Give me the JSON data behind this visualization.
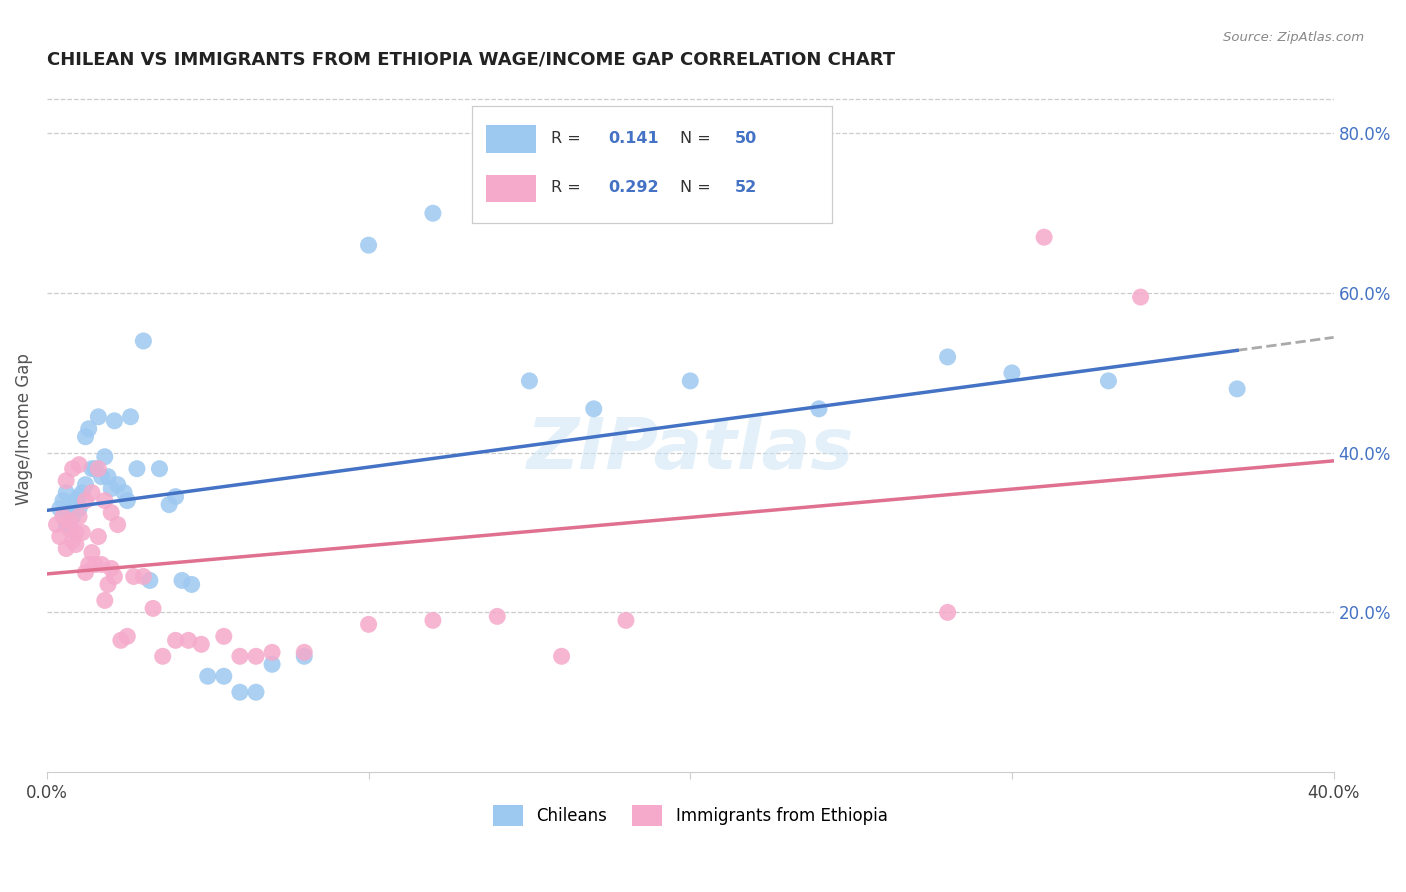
{
  "title": "CHILEAN VS IMMIGRANTS FROM ETHIOPIA WAGE/INCOME GAP CORRELATION CHART",
  "source_text": "Source: ZipAtlas.com",
  "ylabel": "Wage/Income Gap",
  "background_color": "#ffffff",
  "plot_background_color": "#ffffff",
  "grid_color": "#cccccc",
  "chilean_color": "#9DC8F0",
  "ethiopia_color": "#F5AACB",
  "chilean_line_color": "#4472C4",
  "ethiopia_line_color": "#E07090",
  "dashed_line_color": "#aaaaaa",
  "R_chilean": 0.141,
  "N_chilean": 50,
  "R_ethiopia": 0.292,
  "N_ethiopia": 52,
  "xlim": [
    0.0,
    0.4
  ],
  "ylim": [
    0.0,
    0.86
  ],
  "xtick_positions": [
    0.0,
    0.1,
    0.2,
    0.3,
    0.4
  ],
  "xtick_labels": [
    "0.0%",
    "",
    "",
    "",
    "40.0%"
  ],
  "yticks_right": [
    0.2,
    0.4,
    0.6,
    0.8
  ],
  "ytick_labels_right": [
    "20.0%",
    "40.0%",
    "60.0%",
    "80.0%"
  ],
  "watermark": "ZIPatlas",
  "chilean_x": [
    0.004,
    0.005,
    0.006,
    0.006,
    0.007,
    0.008,
    0.008,
    0.009,
    0.01,
    0.01,
    0.011,
    0.012,
    0.012,
    0.013,
    0.014,
    0.015,
    0.016,
    0.017,
    0.018,
    0.019,
    0.02,
    0.021,
    0.022,
    0.024,
    0.025,
    0.026,
    0.028,
    0.03,
    0.032,
    0.035,
    0.038,
    0.04,
    0.042,
    0.045,
    0.05,
    0.055,
    0.06,
    0.065,
    0.07,
    0.08,
    0.1,
    0.12,
    0.15,
    0.17,
    0.2,
    0.24,
    0.28,
    0.3,
    0.33,
    0.37
  ],
  "chilean_y": [
    0.33,
    0.34,
    0.35,
    0.31,
    0.325,
    0.32,
    0.335,
    0.34,
    0.33,
    0.345,
    0.35,
    0.36,
    0.42,
    0.43,
    0.38,
    0.38,
    0.445,
    0.37,
    0.395,
    0.37,
    0.355,
    0.44,
    0.36,
    0.35,
    0.34,
    0.445,
    0.38,
    0.54,
    0.24,
    0.38,
    0.335,
    0.345,
    0.24,
    0.235,
    0.12,
    0.12,
    0.1,
    0.1,
    0.135,
    0.145,
    0.66,
    0.7,
    0.49,
    0.455,
    0.49,
    0.455,
    0.52,
    0.5,
    0.49,
    0.48
  ],
  "ethiopia_x": [
    0.003,
    0.004,
    0.005,
    0.006,
    0.007,
    0.007,
    0.008,
    0.009,
    0.009,
    0.01,
    0.011,
    0.012,
    0.013,
    0.014,
    0.015,
    0.016,
    0.017,
    0.018,
    0.019,
    0.02,
    0.021,
    0.023,
    0.025,
    0.027,
    0.03,
    0.033,
    0.036,
    0.04,
    0.044,
    0.048,
    0.055,
    0.06,
    0.065,
    0.07,
    0.08,
    0.1,
    0.12,
    0.14,
    0.16,
    0.18,
    0.006,
    0.008,
    0.01,
    0.012,
    0.014,
    0.016,
    0.018,
    0.02,
    0.022,
    0.28,
    0.31,
    0.34
  ],
  "ethiopia_y": [
    0.31,
    0.295,
    0.32,
    0.28,
    0.305,
    0.315,
    0.29,
    0.3,
    0.285,
    0.32,
    0.3,
    0.25,
    0.26,
    0.275,
    0.26,
    0.295,
    0.26,
    0.215,
    0.235,
    0.255,
    0.245,
    0.165,
    0.17,
    0.245,
    0.245,
    0.205,
    0.145,
    0.165,
    0.165,
    0.16,
    0.17,
    0.145,
    0.145,
    0.15,
    0.15,
    0.185,
    0.19,
    0.195,
    0.145,
    0.19,
    0.365,
    0.38,
    0.385,
    0.34,
    0.35,
    0.38,
    0.34,
    0.325,
    0.31,
    0.2,
    0.67,
    0.595
  ]
}
